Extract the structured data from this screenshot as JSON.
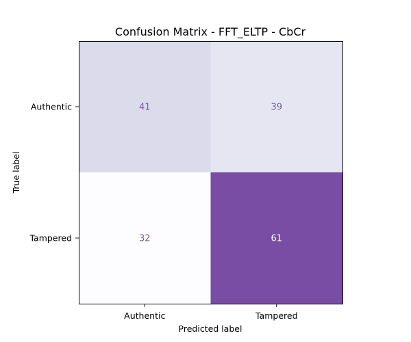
{
  "chart_data": {
    "type": "heatmap",
    "title": "Confusion Matrix - FFT_ELTP - CbCr",
    "xlabel": "Predicted label",
    "ylabel": "True label",
    "x_categories": [
      "Authentic",
      "Tampered"
    ],
    "y_categories": [
      "Authentic",
      "Tampered"
    ],
    "values": [
      [
        41,
        39
      ],
      [
        32,
        61
      ]
    ],
    "value_range": [
      32,
      61
    ],
    "colormap": "Purples",
    "colors": {
      "low": "#ffffff",
      "high": "#755ea2",
      "text_on_light": "#755ea2",
      "text_on_dark": "#ffffff"
    },
    "grid": false,
    "colorbar": false
  }
}
